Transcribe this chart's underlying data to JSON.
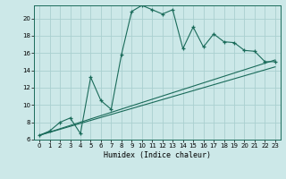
{
  "xlabel": "Humidex (Indice chaleur)",
  "bg_color": "#cce8e8",
  "grid_color": "#aad0d0",
  "line_color": "#1a6b5a",
  "xlim": [
    -0.5,
    23.5
  ],
  "ylim": [
    6,
    21.5
  ],
  "xticks": [
    0,
    1,
    2,
    3,
    4,
    5,
    6,
    7,
    8,
    9,
    10,
    11,
    12,
    13,
    14,
    15,
    16,
    17,
    18,
    19,
    20,
    21,
    22,
    23
  ],
  "yticks": [
    6,
    8,
    10,
    12,
    14,
    16,
    18,
    20
  ],
  "main_x": [
    0,
    1,
    2,
    3,
    4,
    5,
    6,
    7,
    8,
    9,
    10,
    11,
    12,
    13,
    14,
    15,
    16,
    17,
    18,
    19,
    20,
    21,
    22,
    23
  ],
  "main_y": [
    6.5,
    7.0,
    8.0,
    8.5,
    6.7,
    13.2,
    10.5,
    9.5,
    15.8,
    20.8,
    21.5,
    21.0,
    20.5,
    21.0,
    16.5,
    19.0,
    16.7,
    18.2,
    17.3,
    17.2,
    16.3,
    16.2,
    15.0,
    15.0
  ],
  "line2_x": [
    0,
    23
  ],
  "line2_y": [
    6.5,
    15.2
  ],
  "line3_x": [
    0,
    23
  ],
  "line3_y": [
    6.5,
    14.4
  ]
}
